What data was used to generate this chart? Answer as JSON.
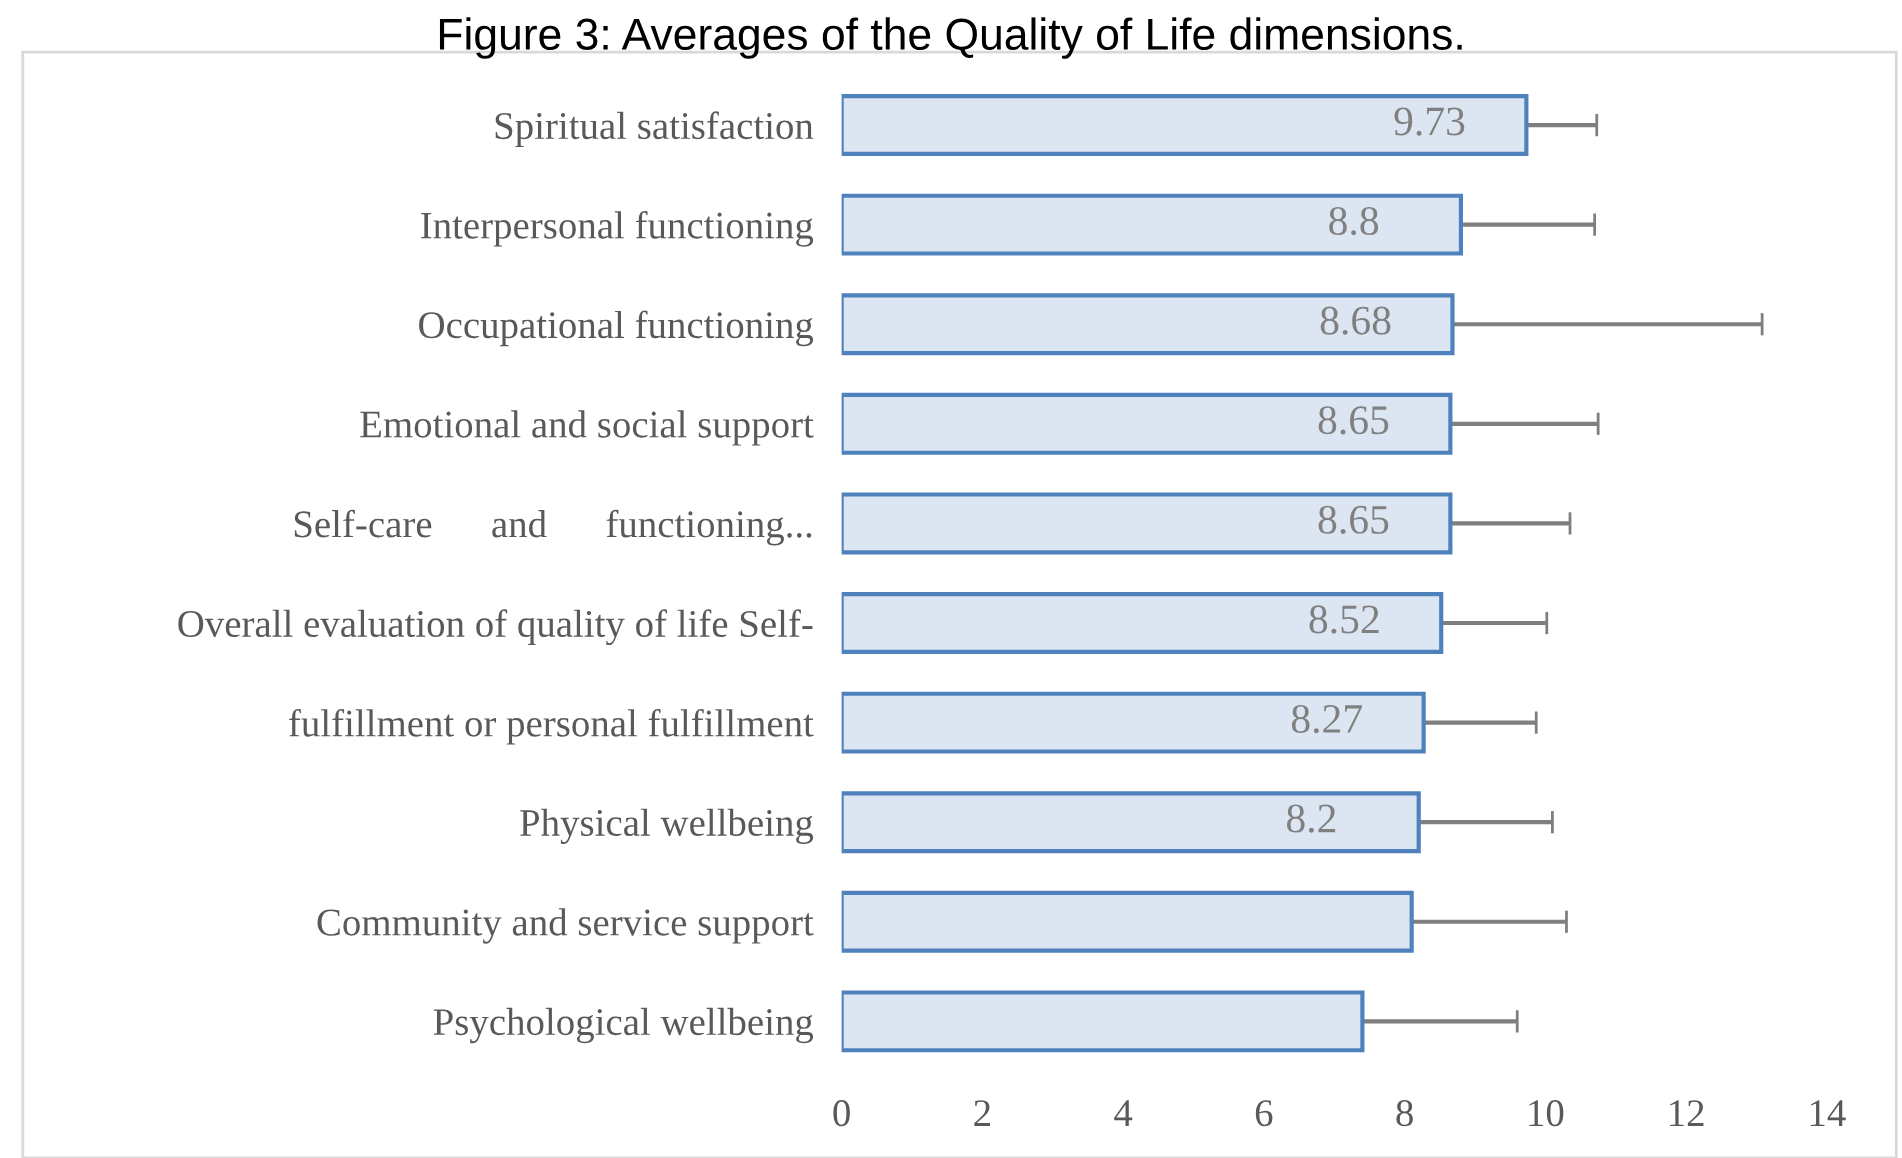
{
  "chart_data": {
    "type": "bar",
    "orientation": "horizontal",
    "title": "Figure 3: Averages of the Quality of Life dimensions.",
    "categories": [
      "Spiritual satisfaction",
      "Interpersonal functioning",
      "Occupational functioning",
      "Emotional and social support",
      "Self-care      and      functioning...",
      "Overall evaluation of quality of life Self-",
      "fulfillment or personal fulfillment",
      "Physical wellbeing",
      "Community and service support",
      "Psychological wellbeing"
    ],
    "values": [
      9.73,
      8.8,
      8.68,
      8.65,
      8.65,
      8.52,
      8.27,
      8.2,
      8.1,
      7.4
    ],
    "value_labels": [
      "9.73",
      "8.8",
      "8.68",
      "8.65",
      "8.65",
      "8.52",
      "8.27",
      "8.2",
      null,
      null
    ],
    "errors": [
      1.0,
      1.9,
      4.4,
      2.1,
      1.7,
      1.5,
      1.6,
      1.9,
      2.2,
      2.2
    ],
    "color": "#dce6f2",
    "xlim": [
      0,
      14
    ],
    "xticks": [
      0,
      2,
      4,
      6,
      8,
      10,
      12,
      14
    ],
    "grid": false,
    "legend": false
  }
}
